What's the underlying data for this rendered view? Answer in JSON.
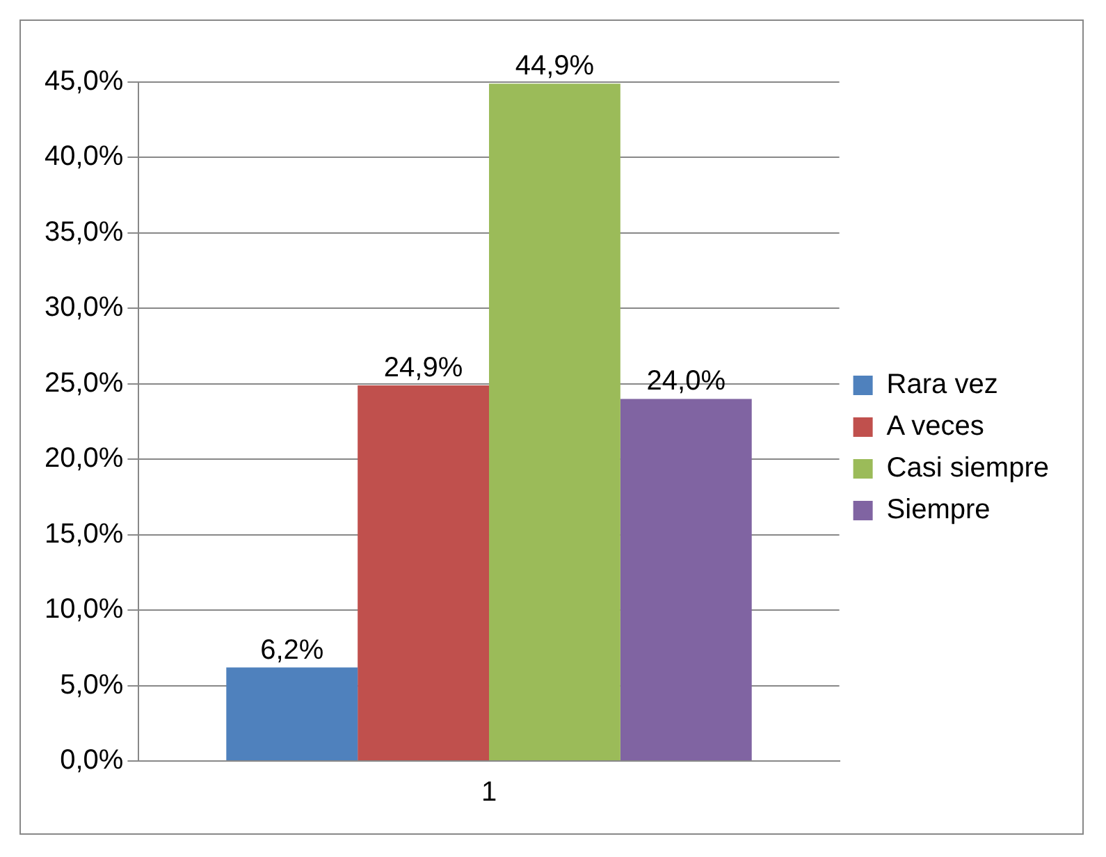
{
  "chart_data": {
    "type": "bar",
    "categories": [
      "1"
    ],
    "series": [
      {
        "name": "Rara vez",
        "color": "#4f81bd",
        "values": [
          6.2
        ],
        "value_labels": [
          "6,2%"
        ]
      },
      {
        "name": "A veces",
        "color": "#c0504d",
        "values": [
          24.9
        ],
        "value_labels": [
          "24,9%"
        ]
      },
      {
        "name": "Casi siempre",
        "color": "#9bbb59",
        "values": [
          44.9
        ],
        "value_labels": [
          "44,9%"
        ]
      },
      {
        "name": "Siempre",
        "color": "#8064a2",
        "values": [
          24.0
        ],
        "value_labels": [
          "24,0%"
        ]
      }
    ],
    "ylim": [
      0,
      45
    ],
    "yticks": [
      {
        "value": 0,
        "label": "0,0%"
      },
      {
        "value": 5,
        "label": "5,0%"
      },
      {
        "value": 10,
        "label": "10,0%"
      },
      {
        "value": 15,
        "label": "15,0%"
      },
      {
        "value": 20,
        "label": "20,0%"
      },
      {
        "value": 25,
        "label": "25,0%"
      },
      {
        "value": 30,
        "label": "30,0%"
      },
      {
        "value": 35,
        "label": "35,0%"
      },
      {
        "value": 40,
        "label": "40,0%"
      },
      {
        "value": 45,
        "label": "45,0%"
      }
    ],
    "grid": "y",
    "legend": "right"
  }
}
